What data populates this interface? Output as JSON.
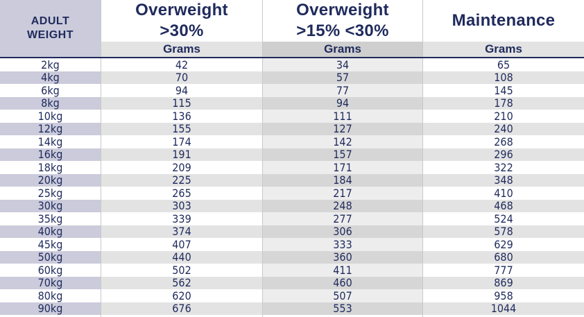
{
  "header": {
    "weight_label_line1": "ADULT",
    "weight_label_line2": "WEIGHT",
    "columns": [
      {
        "line1": "Overweight",
        "line2": ">30%",
        "unit": "Grams"
      },
      {
        "line1": "Overweight",
        "line2": ">15% <30%",
        "unit": "Grams"
      },
      {
        "line1": "Maintenance",
        "line2": "",
        "unit": "Grams"
      }
    ]
  },
  "colors": {
    "text": "#1f2a5c",
    "weight_header_bg": "#cbcbdb",
    "shaded_row_weight": "#cbcbdb",
    "shaded_row_grey": "#e3e3e3",
    "middle_col_shade": "#ededed"
  },
  "rows": [
    {
      "weight": "2kg",
      "ow30": "42",
      "ow15": "34",
      "maint": "65"
    },
    {
      "weight": "4kg",
      "ow30": "70",
      "ow15": "57",
      "maint": "108"
    },
    {
      "weight": "6kg",
      "ow30": "94",
      "ow15": "77",
      "maint": "145"
    },
    {
      "weight": "8kg",
      "ow30": "115",
      "ow15": "94",
      "maint": "178"
    },
    {
      "weight": "10kg",
      "ow30": "136",
      "ow15": "111",
      "maint": "210"
    },
    {
      "weight": "12kg",
      "ow30": "155",
      "ow15": "127",
      "maint": "240"
    },
    {
      "weight": "14kg",
      "ow30": "174",
      "ow15": "142",
      "maint": "268"
    },
    {
      "weight": "16kg",
      "ow30": "191",
      "ow15": "157",
      "maint": "296"
    },
    {
      "weight": "18kg",
      "ow30": "209",
      "ow15": "171",
      "maint": "322"
    },
    {
      "weight": "20kg",
      "ow30": "225",
      "ow15": "184",
      "maint": "348"
    },
    {
      "weight": "25kg",
      "ow30": "265",
      "ow15": "217",
      "maint": "410"
    },
    {
      "weight": "30kg",
      "ow30": "303",
      "ow15": "248",
      "maint": "468"
    },
    {
      "weight": "35kg",
      "ow30": "339",
      "ow15": "277",
      "maint": "524"
    },
    {
      "weight": "40kg",
      "ow30": "374",
      "ow15": "306",
      "maint": "578"
    },
    {
      "weight": "45kg",
      "ow30": "407",
      "ow15": "333",
      "maint": "629"
    },
    {
      "weight": "50kg",
      "ow30": "440",
      "ow15": "360",
      "maint": "680"
    },
    {
      "weight": "60kg",
      "ow30": "502",
      "ow15": "411",
      "maint": "777"
    },
    {
      "weight": "70kg",
      "ow30": "562",
      "ow15": "460",
      "maint": "869"
    },
    {
      "weight": "80kg",
      "ow30": "620",
      "ow15": "507",
      "maint": "958"
    },
    {
      "weight": "90kg",
      "ow30": "676",
      "ow15": "553",
      "maint": "1044"
    }
  ]
}
